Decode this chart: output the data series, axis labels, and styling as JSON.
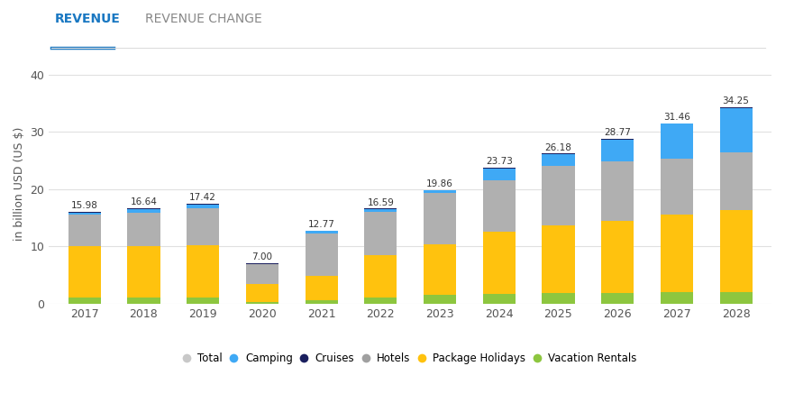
{
  "years": [
    2017,
    2018,
    2019,
    2020,
    2021,
    2022,
    2023,
    2024,
    2025,
    2026,
    2027,
    2028
  ],
  "totals": [
    15.98,
    16.64,
    17.42,
    7.0,
    12.77,
    16.59,
    19.86,
    23.73,
    26.18,
    28.77,
    31.46,
    34.25
  ],
  "vacation_rentals": [
    1.1,
    1.1,
    1.15,
    0.3,
    0.6,
    1.1,
    1.6,
    1.7,
    1.8,
    1.9,
    2.0,
    2.1
  ],
  "package_holidays": [
    8.9,
    8.9,
    9.0,
    3.1,
    4.2,
    7.3,
    8.7,
    10.8,
    11.8,
    12.5,
    13.5,
    14.3
  ],
  "hotels": [
    5.5,
    5.8,
    6.5,
    3.5,
    7.4,
    7.6,
    9.0,
    9.0,
    10.5,
    10.4,
    9.8,
    9.95
  ],
  "camping": [
    0.4,
    0.75,
    0.67,
    0.08,
    0.5,
    0.5,
    0.5,
    2.15,
    2.0,
    3.87,
    6.06,
    7.8
  ],
  "cruises": [
    0.08,
    0.09,
    0.1,
    0.02,
    0.07,
    0.09,
    0.06,
    0.08,
    0.08,
    0.1,
    0.1,
    0.1
  ],
  "colors": {
    "vacation_rentals": "#8dc63f",
    "package_holidays": "#ffc20e",
    "hotels": "#b0b0b0",
    "camping": "#3fa9f5",
    "cruises": "#1a1f5e"
  },
  "tab_revenue_color": "#1a78c2",
  "tab_revenue_change_color": "#888888",
  "ylabel": "in billion USD (US $)",
  "ylim": [
    0,
    42
  ],
  "yticks": [
    0,
    10,
    20,
    30,
    40
  ],
  "bar_width": 0.55,
  "title_revenue": "REVENUE",
  "title_revenue_change": "REVENUE CHANGE",
  "background_color": "#ffffff",
  "grid_color": "#e0e0e0"
}
